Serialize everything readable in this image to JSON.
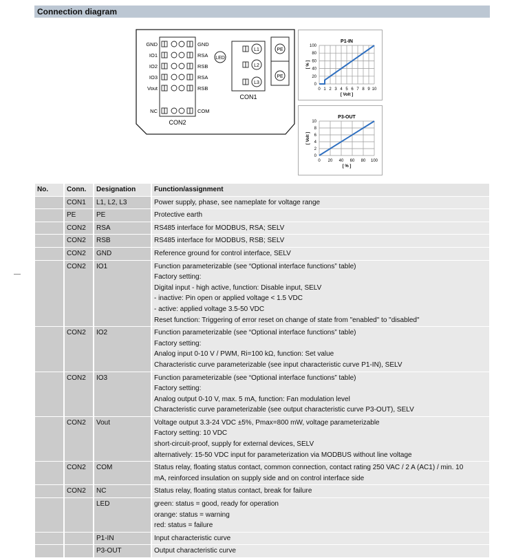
{
  "title": "Connection diagram",
  "diagram": {
    "con2_left_pins": [
      "GND",
      "IO1",
      "IO2",
      "IO3",
      "Vout",
      "NC"
    ],
    "con2_right_pins": [
      "GND",
      "RSA",
      "RSB",
      "RSA",
      "RSB",
      "COM"
    ],
    "con2_label": "CON2",
    "led_label": "LED",
    "con1_pins": [
      "L1",
      "L2",
      "L3"
    ],
    "con1_label": "CON1",
    "pe_labels": [
      "PE",
      "PE"
    ]
  },
  "chart_data": [
    {
      "type": "line",
      "title": "P1-IN",
      "xlabel": "[ Volt ]",
      "ylabel": "[ % ]",
      "xlim": [
        0,
        10
      ],
      "ylim": [
        0,
        100
      ],
      "xticks": [
        0,
        1,
        2,
        3,
        4,
        5,
        6,
        7,
        8,
        9,
        10
      ],
      "yticks": [
        0,
        20,
        40,
        60,
        80,
        100
      ],
      "grid": true,
      "x": [
        0,
        1,
        1,
        10
      ],
      "y": [
        0,
        0,
        10,
        100
      ],
      "color": "#2e6fc0"
    },
    {
      "type": "line",
      "title": "P3-OUT",
      "xlabel": "[ % ]",
      "ylabel": "[ Volt ]",
      "xlim": [
        0,
        100
      ],
      "ylim": [
        0,
        10
      ],
      "xticks": [
        0,
        20,
        40,
        60,
        80,
        100
      ],
      "yticks": [
        0,
        2,
        4,
        6,
        8,
        10
      ],
      "grid": true,
      "x": [
        0,
        100
      ],
      "y": [
        0,
        10
      ],
      "color": "#2e6fc0"
    }
  ],
  "table": {
    "headers": [
      "No.",
      "Conn.",
      "Designation",
      "Function/assignment"
    ],
    "rows": [
      {
        "no": "",
        "conn": "CON1",
        "des": "L1, L2, L3",
        "lines": [
          "Power supply, phase, see nameplate for voltage range"
        ]
      },
      {
        "no": "",
        "conn": "PE",
        "des": "PE",
        "lines": [
          "Protective earth"
        ]
      },
      {
        "no": "",
        "conn": "CON2",
        "des": "RSA",
        "lines": [
          "RS485 interface for MODBUS, RSA; SELV"
        ]
      },
      {
        "no": "",
        "conn": "CON2",
        "des": "RSB",
        "lines": [
          "RS485 interface for MODBUS, RSB; SELV"
        ]
      },
      {
        "no": "",
        "conn": "CON2",
        "des": "GND",
        "lines": [
          "Reference ground for control interface, SELV"
        ]
      },
      {
        "no": "",
        "conn": "CON2",
        "des": "IO1",
        "lines": [
          "Function parameterizable (see “Optional interface functions” table)",
          "Factory setting:",
          "Digital input - high active, function: Disable input, SELV",
          "- inactive: Pin open or applied voltage < 1.5 VDC",
          "- active: applied voltage 3.5-50 VDC",
          "Reset function: Triggering of error reset on change of state from \"enabled\" to \"disabled\""
        ]
      },
      {
        "no": "",
        "conn": "CON2",
        "des": "IO2",
        "lines": [
          "Function parameterizable (see “Optional interface functions” table)",
          "Factory setting:",
          "Analog input 0-10 V / PWM, Ri=100 kΩ, function: Set value",
          "Characteristic curve parameterizable (see input characteristic curve P1-IN), SELV"
        ]
      },
      {
        "no": "",
        "conn": "CON2",
        "des": "IO3",
        "lines": [
          "Function parameterizable (see “Optional interface functions” table)",
          "Factory setting:",
          "Analog output 0-10 V, max. 5 mA, function: Fan modulation level",
          "Characteristic curve parameterizable (see output characteristic curve P3-OUT), SELV"
        ]
      },
      {
        "no": "",
        "conn": "CON2",
        "des": "Vout",
        "lines": [
          "Voltage output 3.3-24 VDC ±5%, Pmax=800 mW, voltage parameterizable",
          "Factory setting: 10 VDC",
          "short-circuit-proof, supply for external devices, SELV",
          "alternatively: 15-50 VDC input for parameterization via MODBUS without line voltage"
        ]
      },
      {
        "no": "",
        "conn": "CON2",
        "des": "COM",
        "lines": [
          "Status relay, floating status contact, common connection, contact rating 250 VAC / 2 A (AC1) / min. 10",
          "mA, reinforced insulation on supply side and on control interface side"
        ]
      },
      {
        "no": "",
        "conn": "CON2",
        "des": "NC",
        "lines": [
          "Status relay, floating status contact, break for failure"
        ]
      },
      {
        "no": "",
        "conn": "",
        "des": "LED",
        "lines": [
          "green: status = good, ready for operation",
          "orange: status = warning",
          "red: status = failure"
        ]
      },
      {
        "no": "",
        "conn": "",
        "des": "P1-IN",
        "lines": [
          "Input characteristic curve"
        ]
      },
      {
        "no": "",
        "conn": "",
        "des": "P3-OUT",
        "lines": [
          "Output characteristic curve"
        ]
      }
    ]
  }
}
